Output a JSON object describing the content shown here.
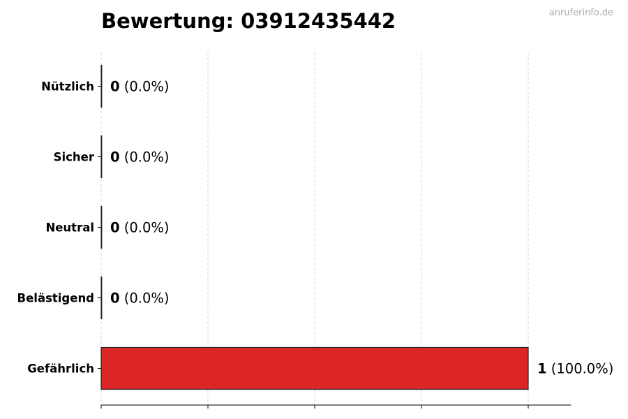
{
  "watermark": "anruferinfo.de",
  "chart_data": {
    "type": "bar",
    "orientation": "horizontal",
    "title": "Bewertung: 03912435442",
    "categories": [
      "Nützlich",
      "Sicher",
      "Neutral",
      "Belästigend",
      "Gefährlich"
    ],
    "values": [
      0,
      0,
      0,
      0,
      1
    ],
    "value_labels": [
      "0",
      "0",
      "0",
      "0",
      "1"
    ],
    "percent_labels": [
      "(0.0%)",
      "(0.0%)",
      "(0.0%)",
      "(0.0%)",
      "(100.0%)"
    ],
    "colors": [
      "#2e7d32",
      "#1565c0",
      "#9e9e9e",
      "#f57c00",
      "#dc2626"
    ],
    "xlim": [
      0,
      1.1
    ],
    "xticks": [
      0,
      0.25,
      0.5,
      0.75,
      1.0
    ],
    "xtick_labels_shown": false,
    "grid": "x-dashed",
    "xlabel": "",
    "ylabel": ""
  }
}
